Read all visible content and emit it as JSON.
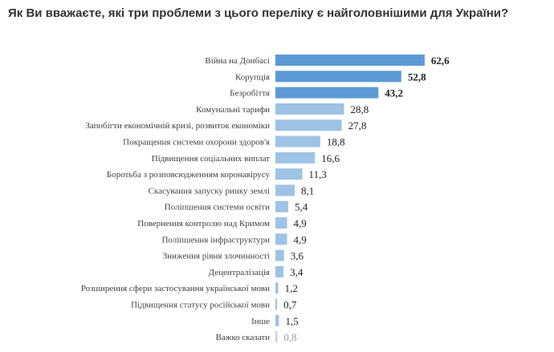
{
  "chart_data": {
    "type": "bar",
    "orientation": "horizontal",
    "title": "Як Ви вважаєте, які три проблеми з цього переліку є найголовнішими для України?",
    "categories": [
      "Війна на Донбасі",
      "Корупція",
      "Безробіття",
      "Комунальні тарифи",
      "Запобігти економічній кризі, розвиток економіки",
      "Покращення системи охорони здоров'я",
      "Підвищення соціальних виплат",
      "Боротьба з розповсюдженням коронавірусу",
      "Скасування запуску ринку землі",
      "Поліпшення системи освіти",
      "Повернення контролю над Кримом",
      "Поліпшення інфраструктури",
      "Зниження рівня злочинності",
      "Децентралізація",
      "Розширення сфери застосування української мови",
      "Підвищення статусу російської мови",
      "Інше",
      "Важко сказати"
    ],
    "values": [
      62.6,
      52.8,
      43.2,
      28.8,
      27.8,
      18.8,
      16.6,
      11.3,
      8.1,
      5.4,
      4.9,
      4.9,
      3.6,
      3.4,
      1.2,
      0.7,
      1.5,
      0.8
    ],
    "value_labels": [
      "62,6",
      "52,8",
      "43,2",
      "28,8",
      "27,8",
      "18,8",
      "16,6",
      "11,3",
      "8,1",
      "5,4",
      "4,9",
      "4,9",
      "3,6",
      "3,4",
      "1,2",
      "0,7",
      "1,5",
      "0,8"
    ],
    "xlim": [
      0,
      70
    ],
    "grid": false,
    "colors": {
      "top": "#5b9bd5",
      "other": "#9dc3e6",
      "hard_to_say": "#d0d0d0"
    }
  }
}
